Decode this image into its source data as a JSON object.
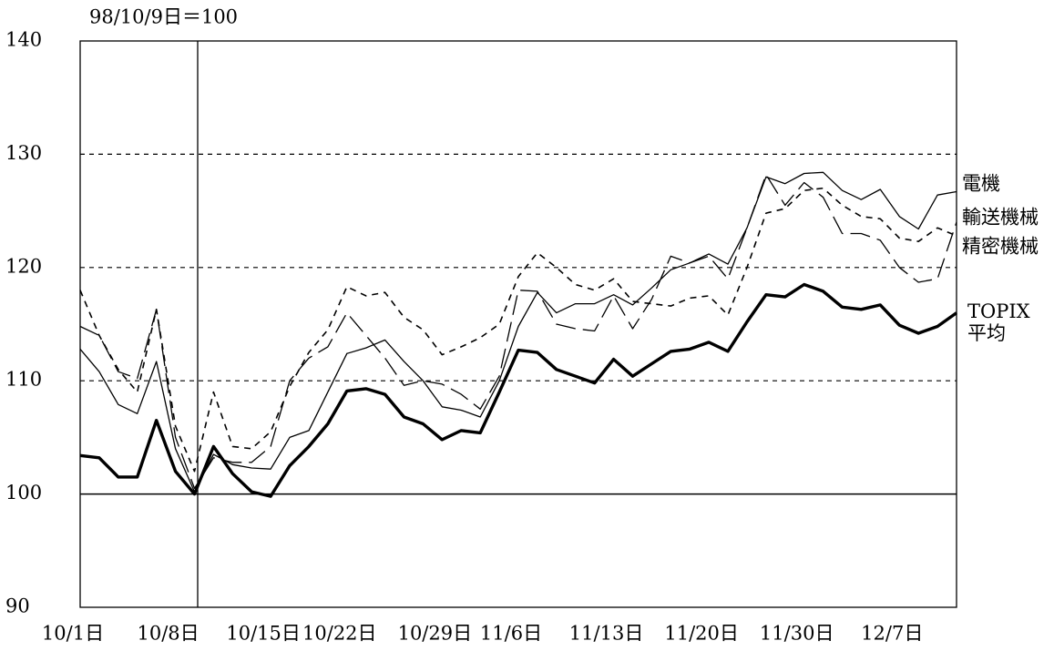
{
  "chart_data": {
    "type": "line",
    "title": "98/10/9日＝100",
    "categories": [
      "10/1日",
      null,
      null,
      null,
      null,
      "10/8日",
      null,
      null,
      null,
      null,
      "10/15日",
      null,
      null,
      null,
      "10/22日",
      null,
      null,
      null,
      null,
      "10/29日",
      null,
      null,
      null,
      "11/6日",
      null,
      null,
      null,
      null,
      "11/13日",
      null,
      null,
      null,
      null,
      "11/20日",
      null,
      null,
      null,
      null,
      "11/30日",
      null,
      null,
      null,
      null,
      "12/7日",
      null,
      null,
      null
    ],
    "series": [
      {
        "name": "電機",
        "color": "#000000",
        "style": "solid",
        "width": 1.3,
        "values": [
          112.8,
          110.8,
          107.9,
          107.1,
          111.7,
          104,
          100.2,
          103.5,
          102.6,
          102.3,
          102.2,
          105,
          105.6,
          109,
          112.4,
          112.9,
          113.6,
          111.7,
          110,
          107.7,
          107.4,
          106.8,
          110,
          114.8,
          117.8,
          116,
          116.8,
          116.8,
          117.6,
          116.7,
          118.2,
          119.8,
          120.4,
          121.2,
          120.3,
          123.5,
          128,
          127.4,
          128.3,
          128.4,
          126.8,
          126,
          126.9,
          124.5,
          123.4,
          126.4,
          126.7
        ]
      },
      {
        "name": "輸送機械",
        "color": "#000000",
        "style": "long-dash",
        "width": 1.3,
        "values": [
          114.8,
          114,
          110.8,
          110.2,
          116.3,
          105,
          100.5,
          103.2,
          102.8,
          102.8,
          104.2,
          110,
          112,
          113,
          116,
          114,
          112,
          109.6,
          110,
          109.7,
          108.8,
          107.5,
          110.4,
          118,
          117.9,
          115,
          114.6,
          114.4,
          117.5,
          114.6,
          117.2,
          121,
          120.4,
          121,
          119,
          123.5,
          128.2,
          125.5,
          127.5,
          126.2,
          123,
          123,
          122.4,
          120,
          118.7,
          119,
          124
        ]
      },
      {
        "name": "精密機械",
        "color": "#000000",
        "style": "short-dash",
        "width": 1.6,
        "values": [
          118,
          114,
          111,
          109,
          116.3,
          106,
          102,
          109,
          104.2,
          104,
          105.5,
          109.5,
          112.5,
          114.5,
          118.3,
          117.5,
          117.8,
          115.6,
          114.5,
          112.3,
          113,
          113.8,
          115,
          119.2,
          121.3,
          120,
          118.5,
          118,
          119,
          117,
          116.8,
          116.6,
          117.3,
          117.5,
          115.8,
          120,
          124.8,
          125.2,
          126.8,
          127,
          125.5,
          124.5,
          124.3,
          122.6,
          122.3,
          123.5,
          122.8
        ]
      },
      {
        "name": "TOPIX 平均",
        "color": "#000000",
        "style": "solid",
        "width": 3.4,
        "values": [
          103.4,
          103.2,
          101.5,
          101.5,
          106.5,
          102,
          100,
          104.2,
          101.8,
          100.2,
          99.8,
          102.5,
          104.2,
          106.2,
          109.1,
          109.3,
          108.8,
          106.8,
          106.2,
          104.8,
          105.6,
          105.4,
          109,
          112.7,
          112.5,
          111,
          110.4,
          109.8,
          111.9,
          110.4,
          111.5,
          112.6,
          112.8,
          113.4,
          112.6,
          115.2,
          117.6,
          117.4,
          118.5,
          117.9,
          116.5,
          116.3,
          116.7,
          114.9,
          114.2,
          114.8,
          116
        ]
      }
    ],
    "ylim": [
      90,
      140
    ],
    "yticks": [
      90,
      100,
      110,
      120,
      130,
      140
    ],
    "grid": true,
    "baseline": 100
  }
}
